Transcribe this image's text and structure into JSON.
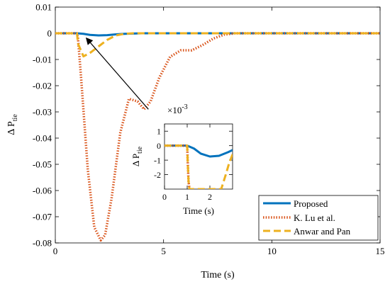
{
  "chart_data": [
    {
      "type": "line",
      "xlabel": "Time (s)",
      "ylabel": "Δ P",
      "ylabel_sub": "tie",
      "xlim": [
        0,
        15
      ],
      "ylim": [
        -0.08,
        0.01
      ],
      "xticks": [
        0,
        5,
        10,
        15
      ],
      "xtick_labels": [
        "0",
        "5",
        "10",
        "15"
      ],
      "yticks": [
        0.01,
        0,
        -0.01,
        -0.02,
        -0.03,
        -0.04,
        -0.05,
        -0.06,
        -0.07,
        -0.08
      ],
      "ytick_labels": [
        "0.01",
        "0",
        "-0.01",
        "-0.02",
        "-0.03",
        "-0.04",
        "-0.05",
        "-0.06",
        "-0.07",
        "-0.08"
      ],
      "grid": false,
      "legend_position": "bottom-right",
      "series": [
        {
          "name": "Proposed",
          "color": "#0072BD",
          "style": "solid",
          "x": [
            0,
            1.0,
            1.3,
            1.6,
            2.0,
            2.4,
            2.8,
            3.2,
            3.6,
            4.0,
            5.0,
            15
          ],
          "y": [
            0,
            0,
            -0.0002,
            -0.0006,
            -0.0008,
            -0.0007,
            -0.0004,
            -0.0002,
            -0.0001,
            0,
            0,
            0
          ]
        },
        {
          "name": "K. Lu et al.",
          "color": "#D95319",
          "style": "dotted",
          "x": [
            0,
            1.0,
            1.05,
            1.2,
            1.5,
            1.8,
            2.1,
            2.3,
            2.6,
            3.0,
            3.4,
            3.8,
            4.1,
            4.4,
            4.8,
            5.3,
            5.8,
            6.3,
            6.8,
            7.3,
            7.8,
            8.3,
            9.0,
            10.0,
            15
          ],
          "y": [
            0,
            0,
            -0.002,
            -0.018,
            -0.052,
            -0.074,
            -0.079,
            -0.077,
            -0.063,
            -0.038,
            -0.025,
            -0.026,
            -0.029,
            -0.026,
            -0.017,
            -0.009,
            -0.0065,
            -0.0065,
            -0.0045,
            -0.002,
            -0.0005,
            0,
            0,
            0,
            0
          ]
        },
        {
          "name": "Anwar and Pan",
          "color": "#EDB120",
          "style": "dashed",
          "x": [
            0,
            1.0,
            1.05,
            1.3,
            1.6,
            2.0,
            2.4,
            2.8,
            3.2,
            3.6,
            4.0,
            15
          ],
          "y": [
            0,
            0,
            -0.004,
            -0.0088,
            -0.0075,
            -0.005,
            -0.0025,
            -0.0008,
            -0.0002,
            0,
            0,
            0
          ]
        }
      ]
    },
    {
      "type": "line",
      "xlabel": "Time (s)",
      "ylabel": "Δ P",
      "ylabel_sub": "tie",
      "exponent_label": "×10",
      "exponent_power": "-3",
      "xlim": [
        0,
        3
      ],
      "ylim": [
        -3,
        1.5
      ],
      "xticks": [
        0,
        1,
        2
      ],
      "xtick_labels": [
        "0",
        "1",
        "2"
      ],
      "yticks": [
        1,
        0,
        -1,
        -2
      ],
      "ytick_labels": [
        "1",
        "0",
        "-1",
        "-2"
      ],
      "grid": false,
      "series": [
        {
          "name": "Proposed",
          "color": "#0072BD",
          "style": "solid",
          "x": [
            0,
            1.0,
            1.3,
            1.6,
            2.0,
            2.4,
            2.8,
            3.0
          ],
          "y": [
            0,
            0,
            -0.2,
            -0.55,
            -0.75,
            -0.7,
            -0.45,
            -0.3
          ]
        },
        {
          "name": "K. Lu et al.",
          "color": "#D95319",
          "style": "dotted",
          "x": [
            0,
            1.0,
            1.02,
            1.06,
            1.1
          ],
          "y": [
            0,
            0,
            -1.0,
            -2.5,
            -3.0
          ]
        },
        {
          "name": "Anwar and Pan",
          "color": "#EDB120",
          "style": "dashed",
          "x": [
            0,
            1.0,
            1.02,
            1.06,
            1.1,
            2.2,
            2.5,
            2.7,
            2.85,
            3.0
          ],
          "y": [
            0,
            0,
            -1.0,
            -2.5,
            -3.0,
            -3.0,
            -3.0,
            -2.0,
            -1.2,
            -0.6
          ]
        }
      ]
    }
  ],
  "arrow": {
    "from": [
      4.3,
      -0.029
    ],
    "to": [
      1.45,
      -0.002
    ]
  }
}
